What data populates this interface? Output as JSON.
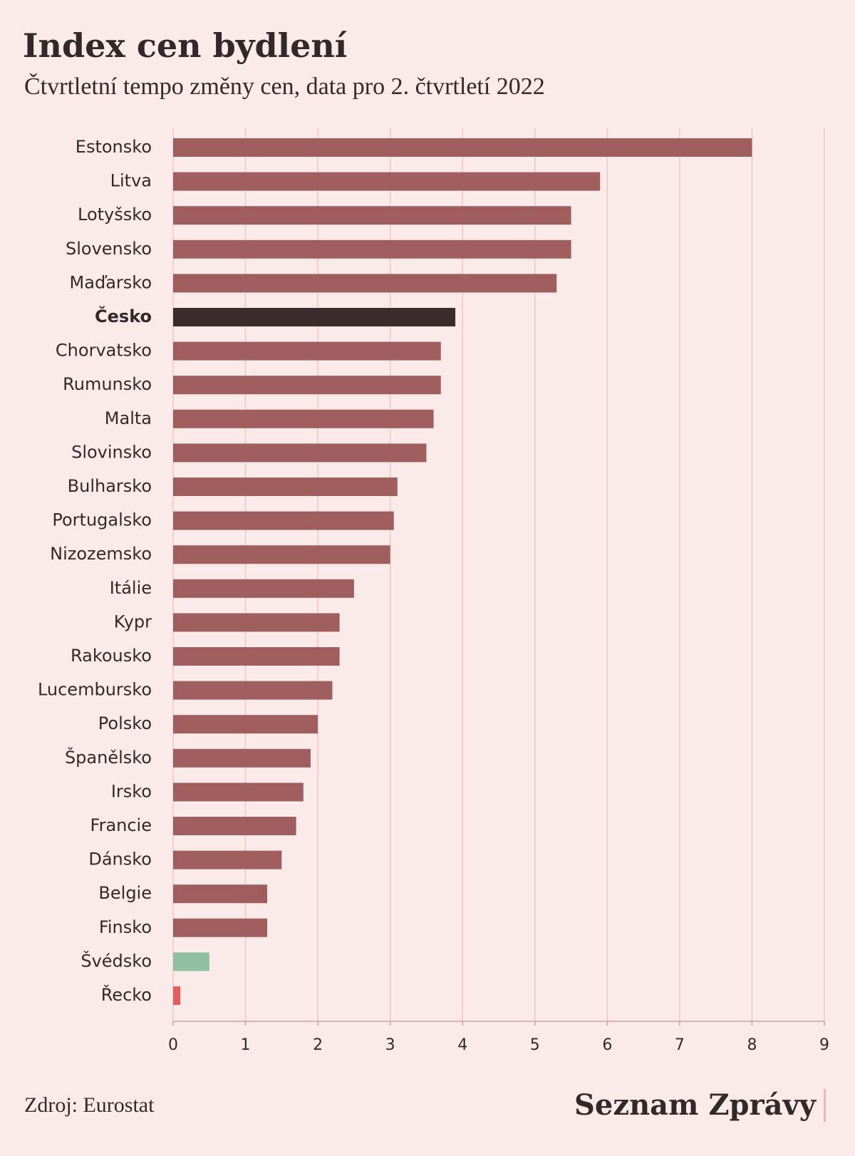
{
  "chart_data": {
    "type": "bar",
    "orientation": "horizontal",
    "title": "Index cen bydlení",
    "subtitle": "Čtvrtletní tempo změny cen, data pro 2. čtvrtletí 2022",
    "categories": [
      "Estonsko",
      "Litva",
      "Lotyšsko",
      "Slovensko",
      "Maďarsko",
      "Česko",
      "Chorvatsko",
      "Rumunsko",
      "Malta",
      "Slovinsko",
      "Bulharsko",
      "Portugalsko",
      "Nizozemsko",
      "Itálie",
      "Kypr",
      "Rakousko",
      "Lucembursko",
      "Polsko",
      "Španělsko",
      "Irsko",
      "Francie",
      "Dánsko",
      "Belgie",
      "Finsko",
      "Švédsko",
      "Řecko"
    ],
    "values": [
      8.0,
      5.9,
      5.5,
      5.5,
      5.3,
      3.9,
      3.7,
      3.7,
      3.6,
      3.5,
      3.1,
      3.05,
      3.0,
      2.5,
      2.3,
      2.3,
      2.2,
      2.0,
      1.9,
      1.8,
      1.7,
      1.5,
      1.3,
      1.3,
      0.5,
      0.1
    ],
    "colors": [
      "#a05e5e",
      "#a05e5e",
      "#a05e5e",
      "#a05e5e",
      "#a05e5e",
      "#3a2c2c",
      "#a05e5e",
      "#a05e5e",
      "#a05e5e",
      "#a05e5e",
      "#a05e5e",
      "#a05e5e",
      "#a05e5e",
      "#a05e5e",
      "#a05e5e",
      "#a05e5e",
      "#a05e5e",
      "#a05e5e",
      "#a05e5e",
      "#a05e5e",
      "#a05e5e",
      "#a05e5e",
      "#a05e5e",
      "#a05e5e",
      "#8fbf9f",
      "#e06060"
    ],
    "highlight_color": "#3a2c2c",
    "xlim": [
      0,
      9
    ],
    "xticks": [
      0,
      1,
      2,
      3,
      4,
      5,
      6,
      7,
      8,
      9
    ],
    "grid": true,
    "source": "Zdroj: Eurostat",
    "brand": "Seznam Zprávy"
  }
}
